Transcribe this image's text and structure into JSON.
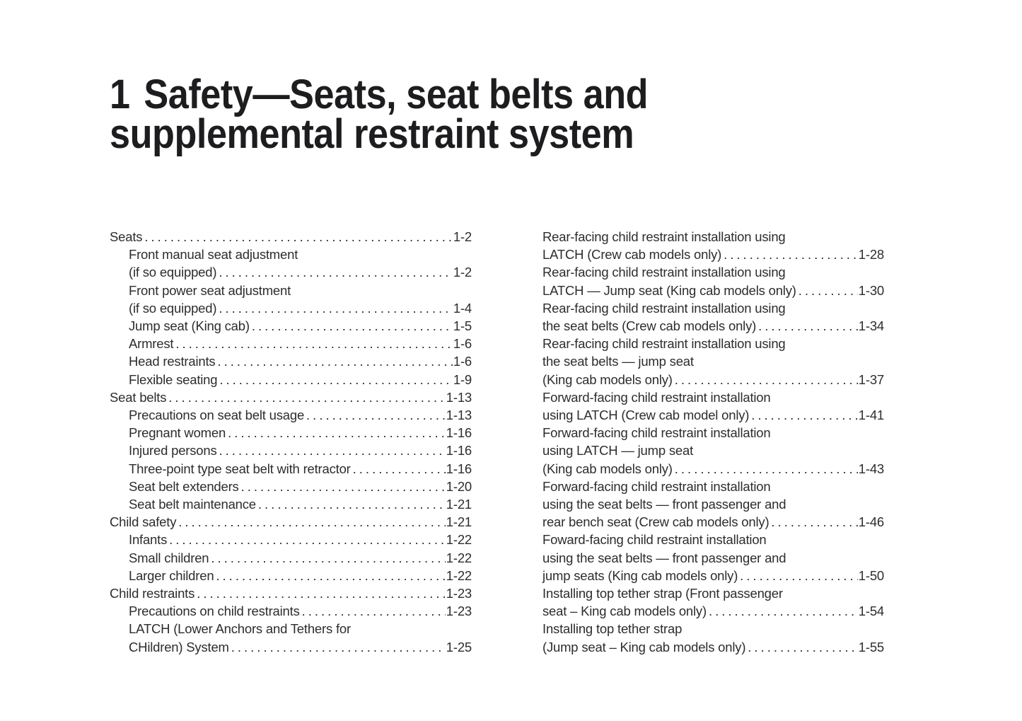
{
  "header": {
    "chapter_number": "1",
    "title_line1": "Safety—Seats, seat belts and",
    "title_line2": "supplemental restraint system"
  },
  "toc": {
    "left_column": [
      {
        "indent": 0,
        "lines": [
          {
            "text": "Seats",
            "page": "1-2"
          }
        ]
      },
      {
        "indent": 1,
        "lines": [
          {
            "text": "Front manual seat adjustment"
          },
          {
            "text": "(if so equipped)",
            "page": "1-2"
          }
        ]
      },
      {
        "indent": 1,
        "lines": [
          {
            "text": "Front power seat adjustment"
          },
          {
            "text": "(if so equipped)",
            "page": "1-4"
          }
        ]
      },
      {
        "indent": 1,
        "lines": [
          {
            "text": "Jump seat (King cab)",
            "page": "1-5"
          }
        ]
      },
      {
        "indent": 1,
        "lines": [
          {
            "text": "Armrest",
            "page": "1-6"
          }
        ]
      },
      {
        "indent": 1,
        "lines": [
          {
            "text": "Head restraints",
            "page": "1-6"
          }
        ]
      },
      {
        "indent": 1,
        "lines": [
          {
            "text": "Flexible seating",
            "page": "1-9"
          }
        ]
      },
      {
        "indent": 0,
        "lines": [
          {
            "text": "Seat belts",
            "page": "1-13"
          }
        ]
      },
      {
        "indent": 1,
        "lines": [
          {
            "text": "Precautions on seat belt usage",
            "page": "1-13"
          }
        ]
      },
      {
        "indent": 1,
        "lines": [
          {
            "text": "Pregnant women",
            "page": "1-16"
          }
        ]
      },
      {
        "indent": 1,
        "lines": [
          {
            "text": "Injured persons",
            "page": "1-16"
          }
        ]
      },
      {
        "indent": 1,
        "lines": [
          {
            "text": "Three-point type seat belt with retractor",
            "page": "1-16"
          }
        ]
      },
      {
        "indent": 1,
        "lines": [
          {
            "text": "Seat belt extenders",
            "page": "1-20"
          }
        ]
      },
      {
        "indent": 1,
        "lines": [
          {
            "text": "Seat belt maintenance",
            "page": "1-21"
          }
        ]
      },
      {
        "indent": 0,
        "lines": [
          {
            "text": "Child safety",
            "page": "1-21"
          }
        ]
      },
      {
        "indent": 1,
        "lines": [
          {
            "text": "Infants",
            "page": "1-22"
          }
        ]
      },
      {
        "indent": 1,
        "lines": [
          {
            "text": "Small children",
            "page": "1-22"
          }
        ]
      },
      {
        "indent": 1,
        "lines": [
          {
            "text": "Larger children",
            "page": "1-22"
          }
        ]
      },
      {
        "indent": 0,
        "lines": [
          {
            "text": "Child restraints",
            "page": "1-23"
          }
        ]
      },
      {
        "indent": 1,
        "lines": [
          {
            "text": "Precautions on child restraints",
            "page": "1-23"
          }
        ]
      },
      {
        "indent": 1,
        "lines": [
          {
            "text": "LATCH (Lower Anchors and Tethers for"
          },
          {
            "text": "CHildren) System",
            "page": "1-25"
          }
        ]
      }
    ],
    "right_column": [
      {
        "indent": 0,
        "lines": [
          {
            "text": "Rear-facing child restraint installation using"
          },
          {
            "text": "LATCH (Crew cab models only)",
            "page": "1-28"
          }
        ]
      },
      {
        "indent": 0,
        "lines": [
          {
            "text": "Rear-facing child restraint installation using"
          },
          {
            "text": "LATCH — Jump seat (King cab models only)",
            "page": "1-30"
          }
        ]
      },
      {
        "indent": 0,
        "lines": [
          {
            "text": "Rear-facing child restraint installation using"
          },
          {
            "text": "the seat belts (Crew cab models only)",
            "page": "1-34"
          }
        ]
      },
      {
        "indent": 0,
        "lines": [
          {
            "text": "Rear-facing child restraint installation using"
          },
          {
            "text": "the seat belts — jump seat"
          },
          {
            "text": "(King cab models only)",
            "page": "1-37"
          }
        ]
      },
      {
        "indent": 0,
        "lines": [
          {
            "text": "Forward-facing child restraint installation"
          },
          {
            "text": "using LATCH (Crew cab model only)",
            "page": "1-41"
          }
        ]
      },
      {
        "indent": 0,
        "lines": [
          {
            "text": "Forward-facing child restraint installation"
          },
          {
            "text": "using LATCH — jump seat"
          },
          {
            "text": "(King cab models only)",
            "page": "1-43"
          }
        ]
      },
      {
        "indent": 0,
        "lines": [
          {
            "text": "Forward-facing child restraint installation"
          },
          {
            "text": "using the seat belts — front passenger and"
          },
          {
            "text": "rear bench seat (Crew cab models only)",
            "page": "1-46"
          }
        ]
      },
      {
        "indent": 0,
        "lines": [
          {
            "text": "Foward-facing child restraint installation"
          },
          {
            "text": "using the seat belts — front passenger and"
          },
          {
            "text": "jump seats (King cab models only)",
            "page": "1-50"
          }
        ]
      },
      {
        "indent": 0,
        "lines": [
          {
            "text": "Installing top tether strap (Front passenger"
          },
          {
            "text": "seat – King cab models only)",
            "page": "1-54"
          }
        ]
      },
      {
        "indent": 0,
        "lines": [
          {
            "text": "Installing top tether strap"
          },
          {
            "text": "(Jump seat – King cab models only)",
            "page": "1-55"
          }
        ]
      }
    ]
  }
}
